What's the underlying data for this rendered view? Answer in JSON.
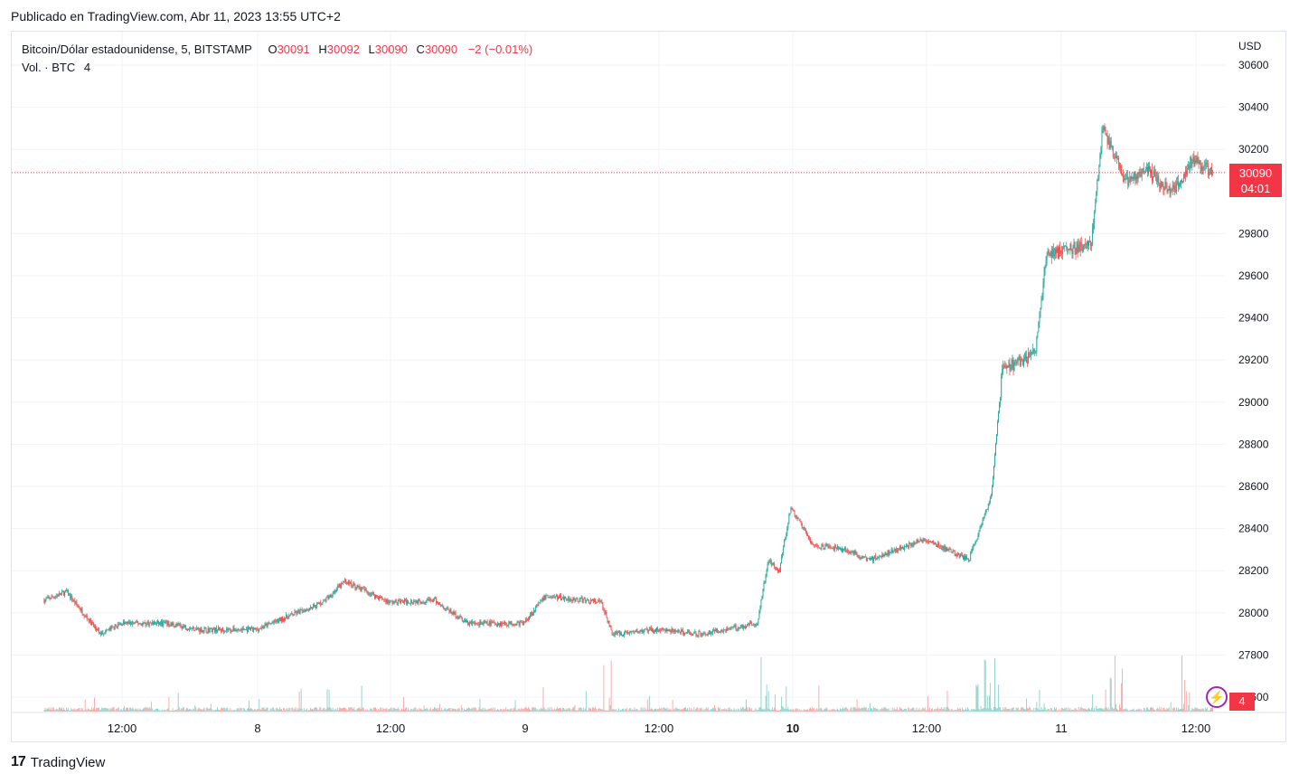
{
  "published": "Publicado en TradingView.com, Abr 11, 2023 13:55 UTC+2",
  "legend": {
    "symbol": "Bitcoin/Dólar estadounidense, 5, BITSTAMP",
    "open_label": "O",
    "open": "30091",
    "high_label": "H",
    "high": "30092",
    "low_label": "L",
    "low": "30090",
    "close_label": "C",
    "close": "30090",
    "change": "−2 (−0.01%)"
  },
  "volume_legend": {
    "label": "Vol. · BTC",
    "value": "4"
  },
  "price_badge": {
    "price": "30090",
    "countdown": "04:01"
  },
  "volume_badge": "4",
  "footer": {
    "brand": "TradingView",
    "logo": "17"
  },
  "colors": {
    "up": "#26a69a",
    "down": "#ef5350",
    "grid": "#f0f3fa",
    "badge": "#f23645"
  },
  "chart_data": {
    "type": "candlestick",
    "currency": "USD",
    "y_ticks": [
      "30600",
      "30400",
      "30200",
      "29800",
      "29600",
      "29400",
      "29200",
      "29000",
      "28800",
      "28600",
      "28400",
      "28200",
      "28000",
      "27800",
      "27600"
    ],
    "ylim": [
      27520,
      30700
    ],
    "x_ticks": [
      "12:00",
      "8",
      "12:00",
      "9",
      "12:00",
      "10",
      "12:00",
      "11",
      "12:00"
    ],
    "x_tick_bold": [
      false,
      false,
      false,
      false,
      false,
      true,
      false,
      false,
      false
    ],
    "last_price": 30090,
    "path_keypoints": [
      {
        "t": "Apr 7 05:00",
        "price": 28060
      },
      {
        "t": "Apr 7 07:00",
        "price": 28100
      },
      {
        "t": "Apr 7 10:00",
        "price": 27900
      },
      {
        "t": "Apr 7 12:00",
        "price": 27950
      },
      {
        "t": "Apr 7 16:00",
        "price": 27950
      },
      {
        "t": "Apr 7 19:00",
        "price": 27920
      },
      {
        "t": "Apr 8 00:00",
        "price": 27920
      },
      {
        "t": "Apr 8 06:00",
        "price": 28050
      },
      {
        "t": "Apr 8 08:00",
        "price": 28150
      },
      {
        "t": "Apr 8 12:00",
        "price": 28050
      },
      {
        "t": "Apr 8 16:00",
        "price": 28060
      },
      {
        "t": "Apr 8 19:00",
        "price": 27950
      },
      {
        "t": "Apr 9 00:00",
        "price": 27950
      },
      {
        "t": "Apr 9 02:00",
        "price": 28080
      },
      {
        "t": "Apr 9 07:00",
        "price": 28050
      },
      {
        "t": "Apr 9 08:00",
        "price": 27900
      },
      {
        "t": "Apr 9 12:00",
        "price": 27920
      },
      {
        "t": "Apr 9 16:00",
        "price": 27900
      },
      {
        "t": "Apr 9 21:00",
        "price": 27950
      },
      {
        "t": "Apr 9 22:00",
        "price": 28250
      },
      {
        "t": "Apr 9 23:00",
        "price": 28200
      },
      {
        "t": "Apr 10 00:00",
        "price": 28500
      },
      {
        "t": "Apr 10 02:00",
        "price": 28320
      },
      {
        "t": "Apr 10 05:00",
        "price": 28300
      },
      {
        "t": "Apr 10 07:00",
        "price": 28250
      },
      {
        "t": "Apr 10 12:00",
        "price": 28350
      },
      {
        "t": "Apr 10 16:00",
        "price": 28250
      },
      {
        "t": "Apr 10 17:00",
        "price": 28400
      },
      {
        "t": "Apr 10 18:00",
        "price": 28550
      },
      {
        "t": "Apr 10 19:00",
        "price": 29150
      },
      {
        "t": "Apr 10 21:00",
        "price": 29200
      },
      {
        "t": "Apr 10 22:00",
        "price": 29250
      },
      {
        "t": "Apr 10 23:00",
        "price": 29700
      },
      {
        "t": "Apr 11 03:00",
        "price": 29750
      },
      {
        "t": "Apr 11 04:00",
        "price": 30300
      },
      {
        "t": "Apr 11 06:00",
        "price": 30050
      },
      {
        "t": "Apr 11 08:00",
        "price": 30100
      },
      {
        "t": "Apr 11 10:00",
        "price": 30000
      },
      {
        "t": "Apr 11 11:00",
        "price": 30050
      },
      {
        "t": "Apr 11 12:00",
        "price": 30150
      },
      {
        "t": "Apr 11 13:55",
        "price": 30090
      }
    ]
  }
}
